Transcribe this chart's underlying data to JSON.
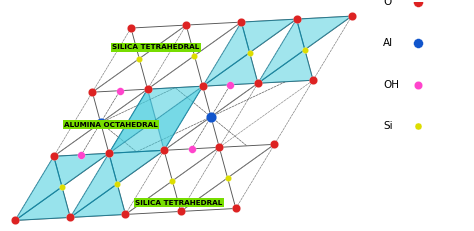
{
  "background_color": "#ffffff",
  "c_O": "#dd2222",
  "c_Al": "#1155cc",
  "c_OH": "#ff44cc",
  "c_Si": "#dddd00",
  "c_cyan": "#44ccdd",
  "c_line": "#555555",
  "label_bg": "#77dd00",
  "figsize": [
    4.74,
    2.31
  ],
  "dpi": 100,
  "legend": [
    {
      "label": "O",
      "color": "#dd2222",
      "ms": 7
    },
    {
      "label": "Al",
      "color": "#1155cc",
      "ms": 7
    },
    {
      "label": "OH",
      "color": "#ff44cc",
      "ms": 6
    },
    {
      "label": "Si",
      "color": "#dddd00",
      "ms": 5
    }
  ]
}
